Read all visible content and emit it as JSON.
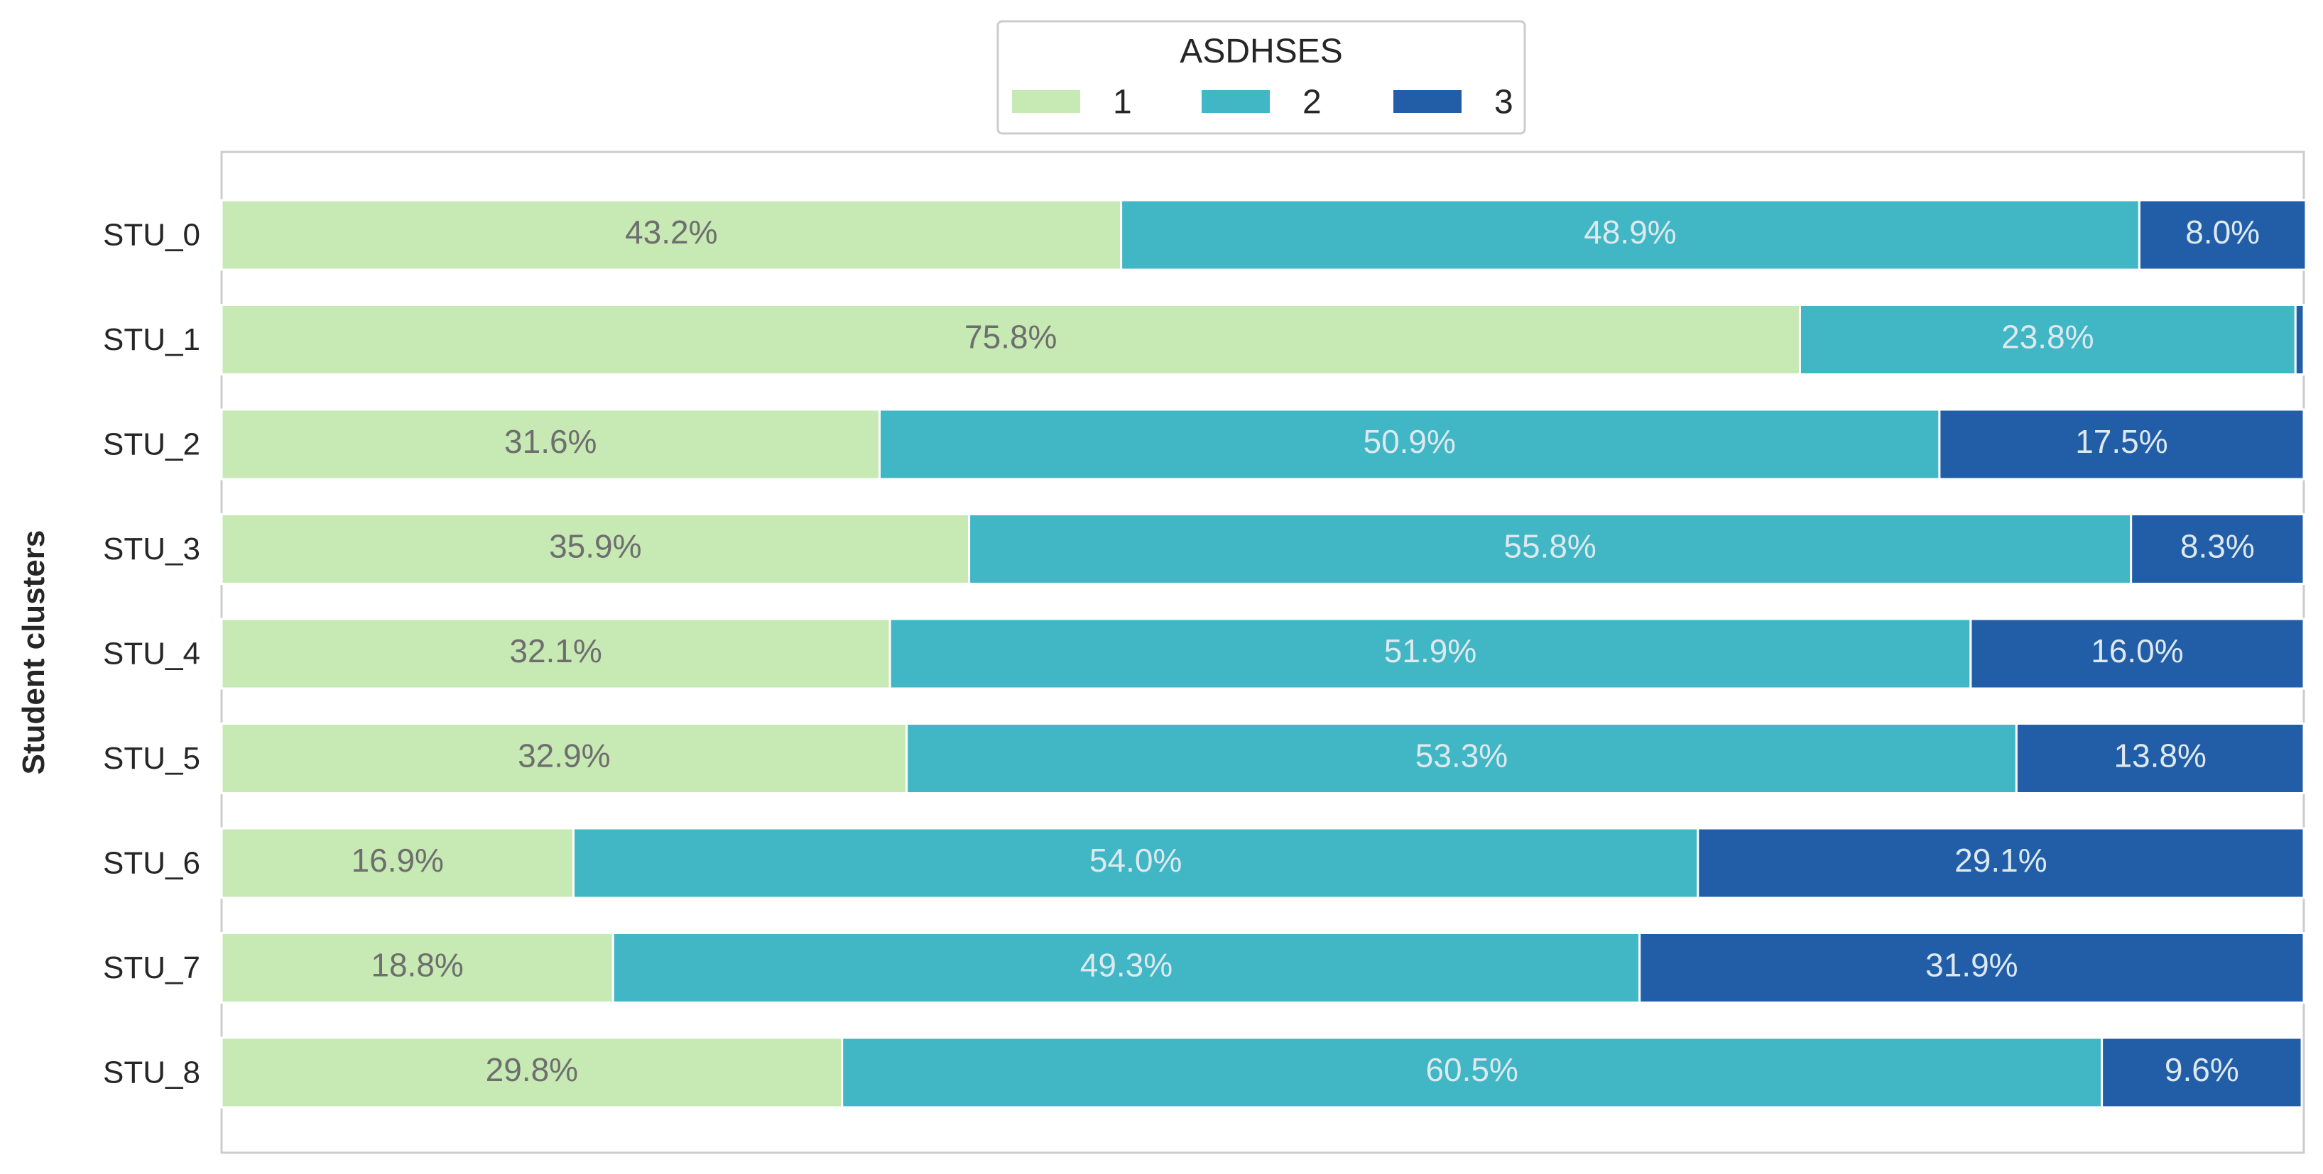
{
  "chart_data": {
    "type": "bar",
    "orientation": "horizontal",
    "stacked": true,
    "normalized_percent": true,
    "categories": [
      "STU_0",
      "STU_1",
      "STU_2",
      "STU_3",
      "STU_4",
      "STU_5",
      "STU_6",
      "STU_7",
      "STU_8"
    ],
    "series": [
      {
        "name": "1",
        "color": "#c7e9b4",
        "label_color": "#6e6e6e",
        "values": [
          43.2,
          75.8,
          31.6,
          35.9,
          32.1,
          32.9,
          16.9,
          18.8,
          29.8
        ],
        "labels": [
          "43.2%",
          "75.8%",
          "31.6%",
          "35.9%",
          "32.1%",
          "32.9%",
          "16.9%",
          "18.8%",
          "29.8%"
        ]
      },
      {
        "name": "2",
        "color": "#41b6c4",
        "label_color": "#dde9ee",
        "values": [
          48.9,
          23.8,
          50.9,
          55.8,
          51.9,
          53.3,
          54.0,
          49.3,
          60.5
        ],
        "labels": [
          "48.9%",
          "23.8%",
          "50.9%",
          "55.8%",
          "51.9%",
          "53.3%",
          "54.0%",
          "49.3%",
          "60.5%"
        ]
      },
      {
        "name": "3",
        "color": "#225ea8",
        "label_color": "#dde9ee",
        "values": [
          8.0,
          0.4,
          17.5,
          8.3,
          16.0,
          13.8,
          29.1,
          31.9,
          9.6
        ],
        "labels": [
          "8.0%",
          "",
          "17.5%",
          "8.3%",
          "16.0%",
          "13.8%",
          "29.1%",
          "31.9%",
          "9.6%"
        ]
      }
    ],
    "title": "",
    "xlabel": "",
    "ylabel": "Student clusters",
    "xlim": [
      0,
      100
    ],
    "legend": {
      "title": "ASDHSES",
      "placement": "top-center",
      "entries": [
        "1",
        "2",
        "3"
      ]
    },
    "grid": false
  }
}
